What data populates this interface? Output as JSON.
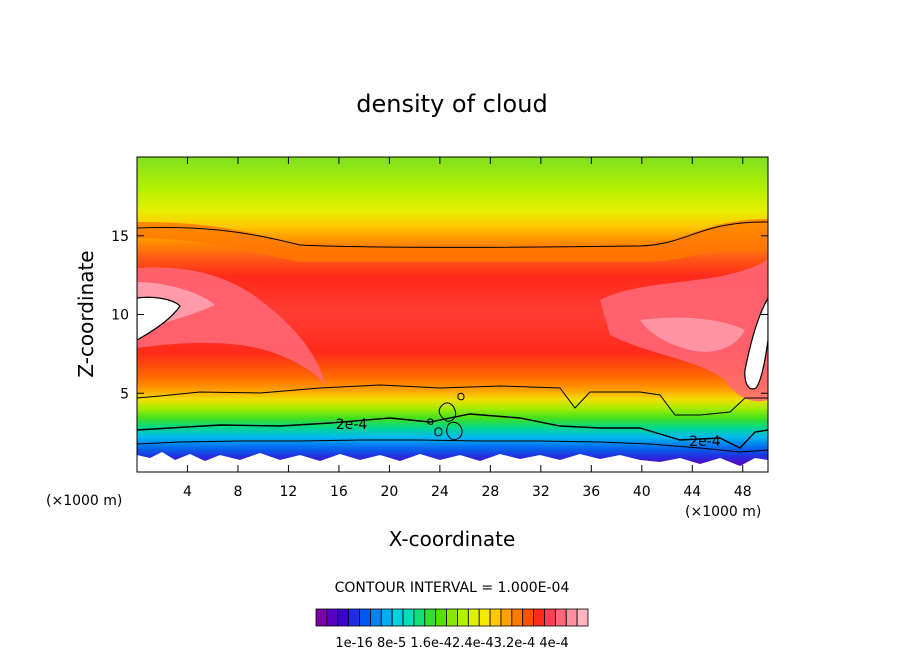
{
  "chart_data": {
    "type": "heatmap",
    "title": "density of cloud",
    "xlabel": "X-coordinate",
    "ylabel": "Z-coordinate",
    "x_unit_left": "(×1000 m)",
    "x_unit_right": "(×1000 m)",
    "xlim": [
      0,
      50
    ],
    "ylim": [
      0,
      20
    ],
    "x_ticks": [
      4,
      8,
      12,
      16,
      20,
      24,
      28,
      32,
      36,
      40,
      44,
      48
    ],
    "y_ticks": [
      5,
      10,
      15
    ],
    "contour_interval_text": "CONTOUR INTERVAL = 1.000E-04",
    "contour_labels": [
      {
        "text": "2e-4",
        "x": 17,
        "z": 3.0
      },
      {
        "text": "2e-4",
        "x": 45,
        "z": 1.9
      }
    ],
    "colorbar": {
      "colors": [
        "#7a00a8",
        "#5a00c0",
        "#3a00d8",
        "#1f2ee6",
        "#0058f0",
        "#0084f5",
        "#00aef0",
        "#00d0e0",
        "#00e0b8",
        "#10e07a",
        "#30e030",
        "#5ae000",
        "#88e800",
        "#b4f000",
        "#dcf000",
        "#f6e800",
        "#ffc800",
        "#ffa000",
        "#ff7800",
        "#ff5000",
        "#ff2a1a",
        "#ff4050",
        "#ff6878",
        "#ff90a0",
        "#ffb4c0"
      ],
      "labels": [
        "1e-16",
        "8e-5",
        "1.6e-4",
        "2.4e-4",
        "3.2e-4",
        "4e-4"
      ],
      "label_text": "1e-16 8e-5 1.6e-42.4e-43.2e-4 4e-4"
    }
  }
}
